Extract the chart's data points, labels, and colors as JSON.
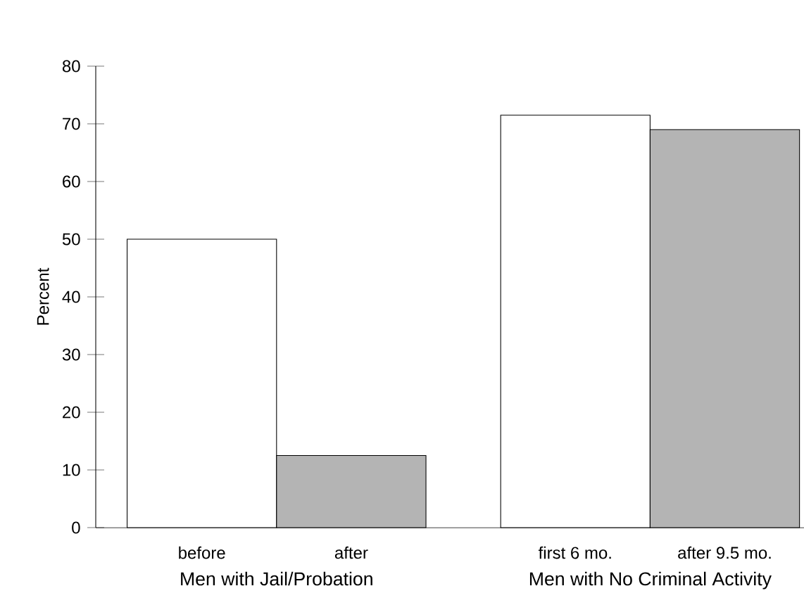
{
  "chart_data": {
    "type": "bar",
    "ylabel": "Percent",
    "categories": [
      "before",
      "after",
      "first 6 mo.",
      "after 9.5 mo."
    ],
    "series": [
      {
        "color": "#ffffff",
        "values": [
          50,
          null,
          71.5,
          null
        ]
      },
      {
        "color": "#b4b4b4",
        "values": [
          null,
          12.5,
          null,
          69
        ]
      }
    ],
    "ylim": [
      0,
      80
    ],
    "yticks": [
      0,
      10,
      20,
      30,
      40,
      50,
      60,
      70,
      80
    ],
    "annotations": [
      "Men with Jail/Probation",
      "Men with No Criminal Activity"
    ]
  }
}
